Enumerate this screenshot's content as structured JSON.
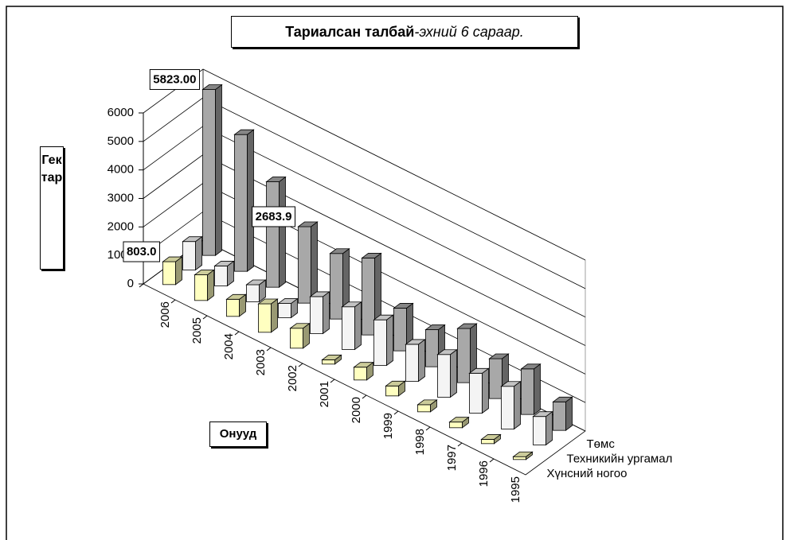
{
  "chart_data": {
    "type": "bar3d",
    "title": "Тариалсан талбай",
    "subtitle": "-эхний 6 сараар.",
    "y_label": "Гектар",
    "x_label": "Онууд",
    "categories": [
      "2006",
      "2005",
      "2004",
      "2003",
      "2002",
      "2001",
      "2000",
      "1999",
      "1998",
      "1997",
      "1996",
      "1995"
    ],
    "series": [
      {
        "name": "Хүнсний ногоо",
        "color": "#ffffc0",
        "values": [
          803.0,
          900,
          600,
          1000,
          700,
          150,
          450,
          350,
          250,
          200,
          150,
          100
        ],
        "value_labels": [
          "803.0",
          null,
          null,
          null,
          null,
          null,
          null,
          null,
          null,
          null,
          null,
          null
        ]
      },
      {
        "name": "Техникийн ургамал",
        "color": "#f4f4f4",
        "values": [
          1000,
          700,
          600,
          500,
          1300,
          1500,
          1600,
          1300,
          1500,
          1400,
          1500,
          1000
        ],
        "value_labels": [
          null,
          null,
          null,
          null,
          null,
          null,
          null,
          null,
          null,
          null,
          null,
          null
        ]
      },
      {
        "name": "Төмс",
        "color": "#a8a8a8",
        "values": [
          5823,
          4800,
          3700,
          2683.9,
          2300,
          2700,
          1500,
          1300,
          1900,
          1400,
          1600,
          1000
        ],
        "value_labels": [
          "5823.00",
          null,
          null,
          "2683.9",
          null,
          null,
          null,
          null,
          null,
          null,
          null,
          null
        ]
      }
    ],
    "ylim": [
      0,
      6000
    ],
    "yticks": [
      0,
      1000,
      2000,
      3000,
      4000,
      5000,
      6000
    ],
    "grid": true
  }
}
